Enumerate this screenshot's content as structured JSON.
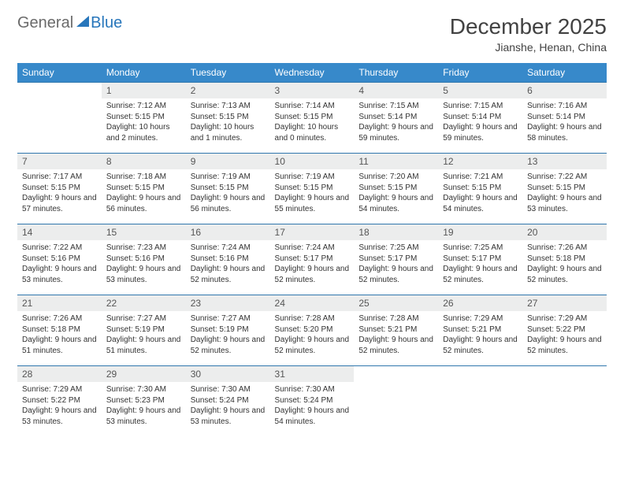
{
  "logo": {
    "text1": "General",
    "text2": "Blue"
  },
  "title": "December 2025",
  "location": "Jianshe, Henan, China",
  "colors": {
    "header_bg": "#3789ca",
    "header_text": "#ffffff",
    "row_border": "#3077ad",
    "daynum_bg": "#eceded",
    "logo_blue": "#2776bb",
    "logo_gray": "#6a6a6a"
  },
  "weekdays": [
    "Sunday",
    "Monday",
    "Tuesday",
    "Wednesday",
    "Thursday",
    "Friday",
    "Saturday"
  ],
  "weeks": [
    [
      {
        "day": "",
        "sunrise": "",
        "sunset": "",
        "daylight": ""
      },
      {
        "day": "1",
        "sunrise": "Sunrise: 7:12 AM",
        "sunset": "Sunset: 5:15 PM",
        "daylight": "Daylight: 10 hours and 2 minutes."
      },
      {
        "day": "2",
        "sunrise": "Sunrise: 7:13 AM",
        "sunset": "Sunset: 5:15 PM",
        "daylight": "Daylight: 10 hours and 1 minutes."
      },
      {
        "day": "3",
        "sunrise": "Sunrise: 7:14 AM",
        "sunset": "Sunset: 5:15 PM",
        "daylight": "Daylight: 10 hours and 0 minutes."
      },
      {
        "day": "4",
        "sunrise": "Sunrise: 7:15 AM",
        "sunset": "Sunset: 5:14 PM",
        "daylight": "Daylight: 9 hours and 59 minutes."
      },
      {
        "day": "5",
        "sunrise": "Sunrise: 7:15 AM",
        "sunset": "Sunset: 5:14 PM",
        "daylight": "Daylight: 9 hours and 59 minutes."
      },
      {
        "day": "6",
        "sunrise": "Sunrise: 7:16 AM",
        "sunset": "Sunset: 5:14 PM",
        "daylight": "Daylight: 9 hours and 58 minutes."
      }
    ],
    [
      {
        "day": "7",
        "sunrise": "Sunrise: 7:17 AM",
        "sunset": "Sunset: 5:15 PM",
        "daylight": "Daylight: 9 hours and 57 minutes."
      },
      {
        "day": "8",
        "sunrise": "Sunrise: 7:18 AM",
        "sunset": "Sunset: 5:15 PM",
        "daylight": "Daylight: 9 hours and 56 minutes."
      },
      {
        "day": "9",
        "sunrise": "Sunrise: 7:19 AM",
        "sunset": "Sunset: 5:15 PM",
        "daylight": "Daylight: 9 hours and 56 minutes."
      },
      {
        "day": "10",
        "sunrise": "Sunrise: 7:19 AM",
        "sunset": "Sunset: 5:15 PM",
        "daylight": "Daylight: 9 hours and 55 minutes."
      },
      {
        "day": "11",
        "sunrise": "Sunrise: 7:20 AM",
        "sunset": "Sunset: 5:15 PM",
        "daylight": "Daylight: 9 hours and 54 minutes."
      },
      {
        "day": "12",
        "sunrise": "Sunrise: 7:21 AM",
        "sunset": "Sunset: 5:15 PM",
        "daylight": "Daylight: 9 hours and 54 minutes."
      },
      {
        "day": "13",
        "sunrise": "Sunrise: 7:22 AM",
        "sunset": "Sunset: 5:15 PM",
        "daylight": "Daylight: 9 hours and 53 minutes."
      }
    ],
    [
      {
        "day": "14",
        "sunrise": "Sunrise: 7:22 AM",
        "sunset": "Sunset: 5:16 PM",
        "daylight": "Daylight: 9 hours and 53 minutes."
      },
      {
        "day": "15",
        "sunrise": "Sunrise: 7:23 AM",
        "sunset": "Sunset: 5:16 PM",
        "daylight": "Daylight: 9 hours and 53 minutes."
      },
      {
        "day": "16",
        "sunrise": "Sunrise: 7:24 AM",
        "sunset": "Sunset: 5:16 PM",
        "daylight": "Daylight: 9 hours and 52 minutes."
      },
      {
        "day": "17",
        "sunrise": "Sunrise: 7:24 AM",
        "sunset": "Sunset: 5:17 PM",
        "daylight": "Daylight: 9 hours and 52 minutes."
      },
      {
        "day": "18",
        "sunrise": "Sunrise: 7:25 AM",
        "sunset": "Sunset: 5:17 PM",
        "daylight": "Daylight: 9 hours and 52 minutes."
      },
      {
        "day": "19",
        "sunrise": "Sunrise: 7:25 AM",
        "sunset": "Sunset: 5:17 PM",
        "daylight": "Daylight: 9 hours and 52 minutes."
      },
      {
        "day": "20",
        "sunrise": "Sunrise: 7:26 AM",
        "sunset": "Sunset: 5:18 PM",
        "daylight": "Daylight: 9 hours and 52 minutes."
      }
    ],
    [
      {
        "day": "21",
        "sunrise": "Sunrise: 7:26 AM",
        "sunset": "Sunset: 5:18 PM",
        "daylight": "Daylight: 9 hours and 51 minutes."
      },
      {
        "day": "22",
        "sunrise": "Sunrise: 7:27 AM",
        "sunset": "Sunset: 5:19 PM",
        "daylight": "Daylight: 9 hours and 51 minutes."
      },
      {
        "day": "23",
        "sunrise": "Sunrise: 7:27 AM",
        "sunset": "Sunset: 5:19 PM",
        "daylight": "Daylight: 9 hours and 52 minutes."
      },
      {
        "day": "24",
        "sunrise": "Sunrise: 7:28 AM",
        "sunset": "Sunset: 5:20 PM",
        "daylight": "Daylight: 9 hours and 52 minutes."
      },
      {
        "day": "25",
        "sunrise": "Sunrise: 7:28 AM",
        "sunset": "Sunset: 5:21 PM",
        "daylight": "Daylight: 9 hours and 52 minutes."
      },
      {
        "day": "26",
        "sunrise": "Sunrise: 7:29 AM",
        "sunset": "Sunset: 5:21 PM",
        "daylight": "Daylight: 9 hours and 52 minutes."
      },
      {
        "day": "27",
        "sunrise": "Sunrise: 7:29 AM",
        "sunset": "Sunset: 5:22 PM",
        "daylight": "Daylight: 9 hours and 52 minutes."
      }
    ],
    [
      {
        "day": "28",
        "sunrise": "Sunrise: 7:29 AM",
        "sunset": "Sunset: 5:22 PM",
        "daylight": "Daylight: 9 hours and 53 minutes."
      },
      {
        "day": "29",
        "sunrise": "Sunrise: 7:30 AM",
        "sunset": "Sunset: 5:23 PM",
        "daylight": "Daylight: 9 hours and 53 minutes."
      },
      {
        "day": "30",
        "sunrise": "Sunrise: 7:30 AM",
        "sunset": "Sunset: 5:24 PM",
        "daylight": "Daylight: 9 hours and 53 minutes."
      },
      {
        "day": "31",
        "sunrise": "Sunrise: 7:30 AM",
        "sunset": "Sunset: 5:24 PM",
        "daylight": "Daylight: 9 hours and 54 minutes."
      },
      {
        "day": "",
        "sunrise": "",
        "sunset": "",
        "daylight": ""
      },
      {
        "day": "",
        "sunrise": "",
        "sunset": "",
        "daylight": ""
      },
      {
        "day": "",
        "sunrise": "",
        "sunset": "",
        "daylight": ""
      }
    ]
  ]
}
